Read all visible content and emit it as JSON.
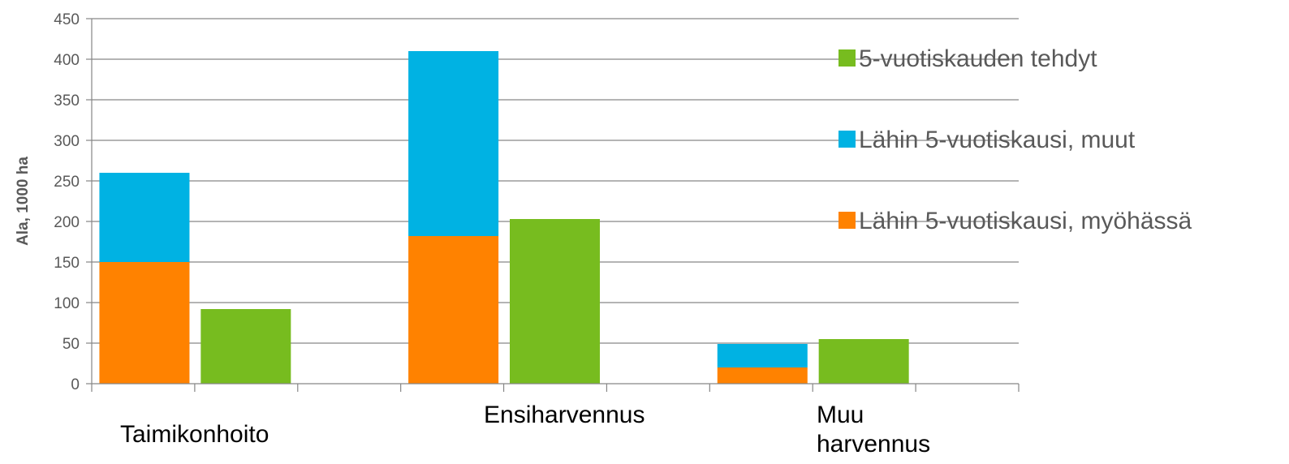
{
  "chart_data": {
    "type": "bar",
    "stacked": true,
    "ylabel": "Ala, 1000 ha",
    "xlabel": "",
    "ylim": [
      0,
      450
    ],
    "ytick_step": 50,
    "yticks": [
      "0",
      "50",
      "100",
      "150",
      "200",
      "250",
      "300",
      "350",
      "400",
      "450"
    ],
    "grid": true,
    "legend_position": "right",
    "categories": [
      "Taimikonhoito",
      "Ensiharvennus",
      "Muu harvennus"
    ],
    "category_label_lines": [
      [
        "Taimikonhoito"
      ],
      [
        "Ensiharvennus"
      ],
      [
        "Muu",
        "harvennus"
      ]
    ],
    "series": [
      {
        "name": "5-vuotiskauden tehdyt",
        "color": "#77bc1f",
        "stack": "done",
        "values": [
          92,
          203,
          55
        ]
      },
      {
        "name": "Lähin 5-vuotiskausi, muut",
        "color": "#00b2e3",
        "stack": "upcoming",
        "values": [
          110,
          228,
          29
        ]
      },
      {
        "name": "Lähin 5-vuotiskausi, myöhässä",
        "color": "#ff8200",
        "stack": "upcoming",
        "values": [
          150,
          182,
          20
        ]
      }
    ]
  }
}
